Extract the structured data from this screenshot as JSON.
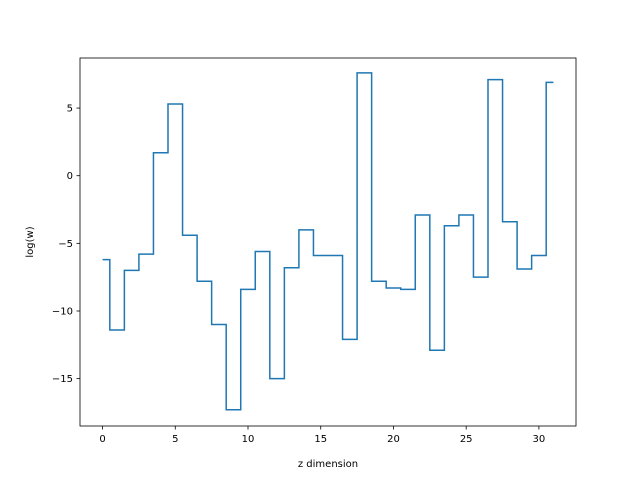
{
  "chart_data": {
    "type": "line",
    "drawstyle": "steps-mid",
    "xlabel": "z dimension",
    "ylabel": "log(w)",
    "xlim": [
      -1.55,
      32.55
    ],
    "ylim": [
      -18.5,
      8.7
    ],
    "xticks": [
      0,
      5,
      10,
      15,
      20,
      25,
      30
    ],
    "yticks": [
      -15,
      -10,
      -5,
      0,
      5
    ],
    "xtick_labels": [
      "0",
      "5",
      "10",
      "15",
      "20",
      "25",
      "30"
    ],
    "ytick_labels": [
      "−15",
      "−10",
      "−5",
      "0",
      "5"
    ],
    "grid": false,
    "x": [
      0,
      1,
      2,
      3,
      4,
      5,
      6,
      7,
      8,
      9,
      10,
      11,
      12,
      13,
      14,
      15,
      16,
      17,
      18,
      19,
      20,
      21,
      22,
      23,
      24,
      25,
      26,
      27,
      28,
      29,
      30,
      31
    ],
    "y": [
      -6.2,
      -11.4,
      -7.0,
      -5.8,
      1.7,
      5.3,
      -4.4,
      -7.8,
      -11.0,
      -17.3,
      -8.4,
      -5.6,
      -15.0,
      -6.8,
      -4.0,
      -5.9,
      -5.9,
      -12.1,
      7.6,
      -7.8,
      -8.3,
      -8.4,
      -2.9,
      -12.9,
      -3.7,
      -2.9,
      -7.5,
      7.1,
      -3.4,
      -6.9,
      -5.9,
      6.9
    ],
    "series_color": "#1f77b4"
  }
}
